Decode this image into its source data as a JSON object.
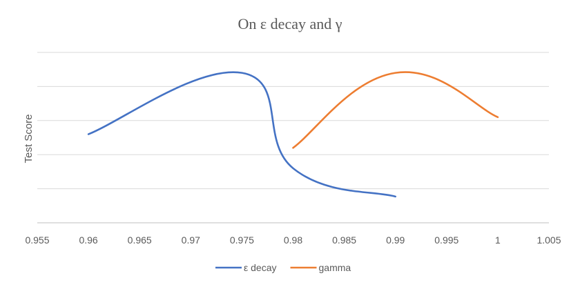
{
  "chart_data": {
    "type": "line",
    "title": "On ε decay and γ",
    "xlabel": "",
    "ylabel": "Test Score",
    "xlim": [
      0.955,
      1.005
    ],
    "x_ticks": [
      "0.955",
      "0.96",
      "0.965",
      "0.97",
      "0.975",
      "0.98",
      "0.985",
      "0.99",
      "0.995",
      "1",
      "1.005"
    ],
    "ylim": [
      0,
      5
    ],
    "grid": true,
    "legend_position": "bottom",
    "series": [
      {
        "name": "ε decay",
        "color": "#4472C4",
        "points": [
          [
            0.96,
            2.6
          ],
          [
            0.975,
            4.4
          ],
          [
            0.98,
            1.6
          ],
          [
            0.99,
            0.77
          ]
        ]
      },
      {
        "name": "gamma",
        "color": "#ED7D31",
        "points": [
          [
            0.98,
            2.2
          ],
          [
            0.99,
            4.4
          ],
          [
            1.0,
            3.1
          ]
        ]
      }
    ]
  }
}
